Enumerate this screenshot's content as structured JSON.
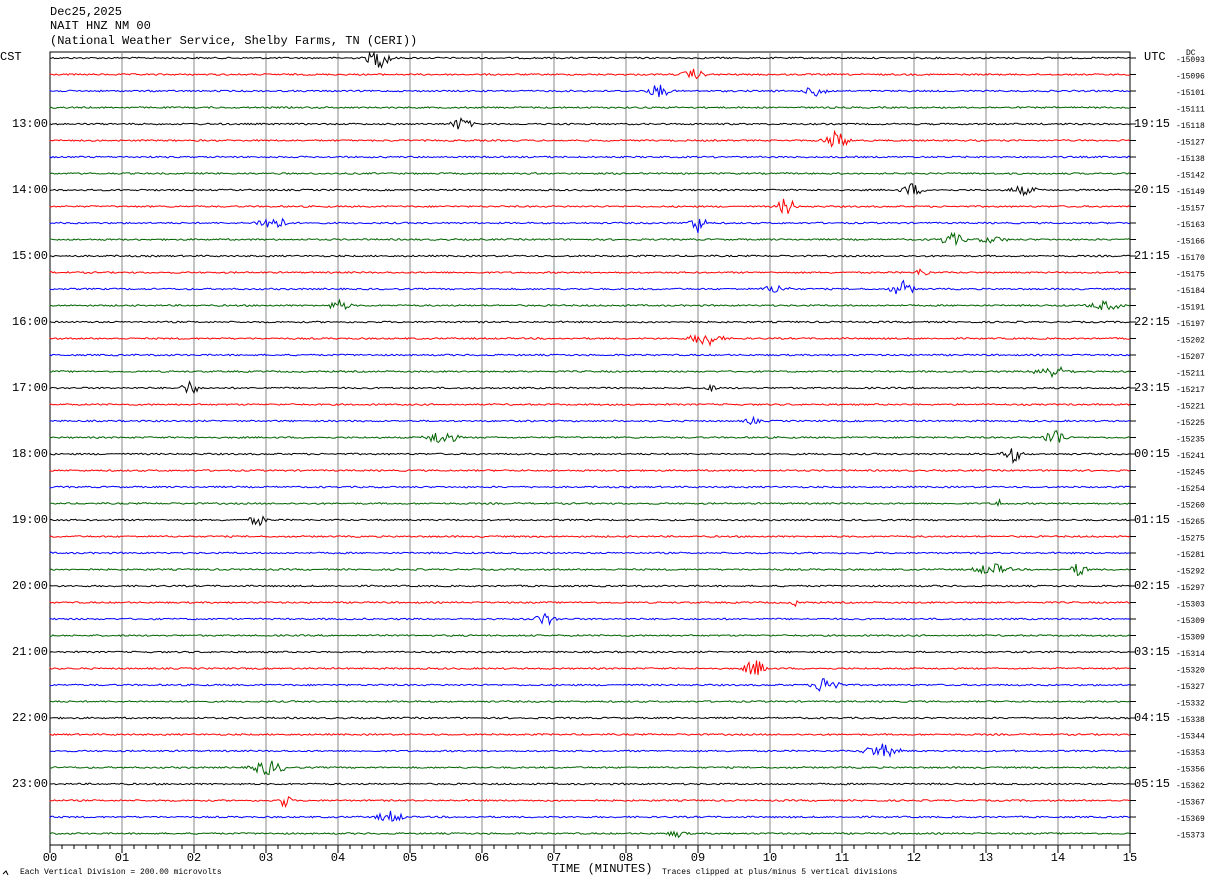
{
  "header": {
    "date": "Dec25,2025",
    "station": "NAIT HNZ NM 00",
    "network": "(National Weather Service, Shelby Farms, TN (CERI))"
  },
  "left_axis": {
    "zone": "CST",
    "labels": [
      "13:00",
      "14:00",
      "15:00",
      "16:00",
      "17:00",
      "18:00",
      "19:00",
      "20:00",
      "21:00",
      "22:00",
      "23:00"
    ]
  },
  "right_axis": {
    "zone": "UTC",
    "dc": "DC",
    "labels": [
      "19:15",
      "20:15",
      "21:15",
      "22:15",
      "23:15",
      "00:15",
      "01:15",
      "02:15",
      "03:15",
      "04:15",
      "05:15"
    ],
    "offsets": [
      "-15093",
      "-15096",
      "-15101",
      "-15111",
      "-15118",
      "-15127",
      "-15138",
      "-15142",
      "-15149",
      "-15157",
      "-15163",
      "-15166",
      "-15170",
      "-15175",
      "-15184",
      "-15191",
      "-15197",
      "-15202",
      "-15207",
      "-15211",
      "-15217",
      "-15221",
      "-15225",
      "-15235",
      "-15241",
      "-15245",
      "-15254",
      "-15260",
      "-15265",
      "-15275",
      "-15281",
      "-15292",
      "-15297",
      "-15303",
      "-15309",
      "-15309",
      "-15314",
      "-15320",
      "-15327",
      "-15332",
      "-15338",
      "-15344",
      "-15353",
      "-15356",
      "-15362",
      "-15367",
      "-15369",
      "-15373"
    ]
  },
  "x_axis": {
    "title": "TIME (MINUTES)",
    "labels": [
      "00",
      "01",
      "02",
      "03",
      "04",
      "05",
      "06",
      "07",
      "08",
      "09",
      "10",
      "11",
      "12",
      "13",
      "14",
      "15"
    ]
  },
  "footer": {
    "scale": "Each Vertical Division =  200.00 microvolts",
    "clip": "Traces clipped at plus/minus 5 vertical divisions"
  }
}
